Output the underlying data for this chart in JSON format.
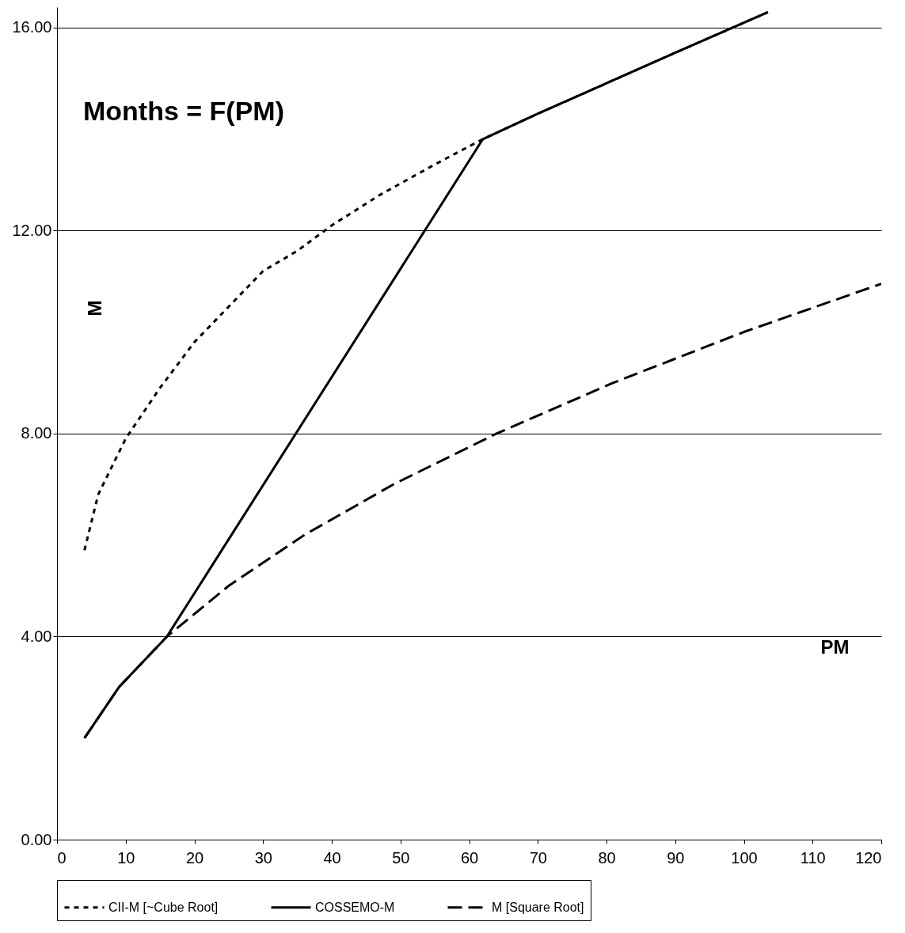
{
  "chart_data": {
    "type": "line",
    "title": "Months = F(PM)",
    "xlabel": "PM",
    "ylabel": "M",
    "xlim": [
      0,
      120
    ],
    "xticks": [
      0,
      10,
      20,
      30,
      40,
      50,
      60,
      70,
      80,
      90,
      100,
      110,
      120
    ],
    "ylim": [
      0,
      16.4
    ],
    "yticks": [
      {
        "value": 0,
        "label": "0.00"
      },
      {
        "value": 4,
        "label": "4.00"
      },
      {
        "value": 8,
        "label": "8.00"
      },
      {
        "value": 12,
        "label": "12.00"
      },
      {
        "value": 16,
        "label": "16.00"
      }
    ],
    "grid": "y",
    "legend": "bottom",
    "marker": "none",
    "series": [
      {
        "name": "CII-M [~Cube Root]",
        "color": "#000000",
        "line_style": "dotted",
        "x": [
          4,
          6,
          10,
          15,
          20,
          25,
          30,
          35,
          40,
          47,
          55,
          62,
          70,
          80,
          90,
          103.5
        ],
        "values": [
          5.7,
          6.8,
          7.9,
          8.9,
          9.8,
          10.5,
          11.2,
          11.6,
          12.1,
          12.7,
          13.3,
          13.8,
          14.3,
          14.9,
          15.5,
          16.3
        ]
      },
      {
        "name": "COSSEMO-M",
        "color": "#000000",
        "line_style": "solid",
        "x": [
          4,
          9,
          16,
          62,
          70,
          80,
          90,
          103.5
        ],
        "values": [
          2,
          3,
          4,
          13.8,
          14.3,
          14.9,
          15.5,
          16.3
        ]
      },
      {
        "name": "M [Square Root]",
        "color": "#000000",
        "line_style": "dashed",
        "x": [
          4,
          9,
          16,
          25,
          36,
          49,
          64,
          81,
          100,
          120
        ],
        "values": [
          2,
          3,
          4,
          5,
          6,
          7,
          8,
          9,
          10,
          10.95
        ]
      }
    ]
  }
}
